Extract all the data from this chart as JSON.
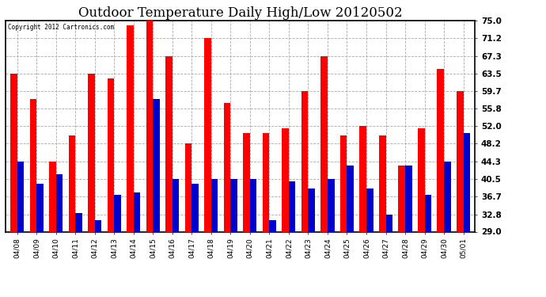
{
  "title": "Outdoor Temperature Daily High/Low 20120502",
  "copyright": "Copyright 2012 Cartronics.com",
  "dates": [
    "04/08",
    "04/09",
    "04/10",
    "04/11",
    "04/12",
    "04/13",
    "04/14",
    "04/15",
    "04/16",
    "04/17",
    "04/18",
    "04/19",
    "04/20",
    "04/21",
    "04/22",
    "04/23",
    "04/24",
    "04/25",
    "04/26",
    "04/27",
    "04/28",
    "04/29",
    "04/30",
    "05/01"
  ],
  "highs": [
    63.5,
    57.9,
    44.3,
    50.0,
    63.5,
    62.5,
    74.0,
    75.0,
    67.3,
    48.2,
    71.2,
    57.0,
    50.5,
    50.5,
    51.5,
    59.7,
    67.3,
    50.0,
    52.0,
    50.0,
    43.5,
    51.5,
    64.5,
    59.7
  ],
  "lows": [
    44.3,
    39.5,
    41.5,
    33.0,
    31.5,
    37.0,
    37.5,
    58.0,
    40.5,
    39.5,
    40.5,
    40.5,
    40.5,
    31.5,
    40.0,
    38.5,
    40.5,
    43.5,
    38.5,
    32.8,
    43.5,
    37.0,
    44.3,
    50.5
  ],
  "yticks": [
    29.0,
    32.8,
    36.7,
    40.5,
    44.3,
    48.2,
    52.0,
    55.8,
    59.7,
    63.5,
    67.3,
    71.2,
    75.0
  ],
  "ymin": 29.0,
  "ymax": 75.0,
  "high_color": "#ff0000",
  "low_color": "#0000cc",
  "bg_color": "#ffffff",
  "grid_color": "#aaaaaa",
  "title_fontsize": 12,
  "bar_width": 0.35
}
